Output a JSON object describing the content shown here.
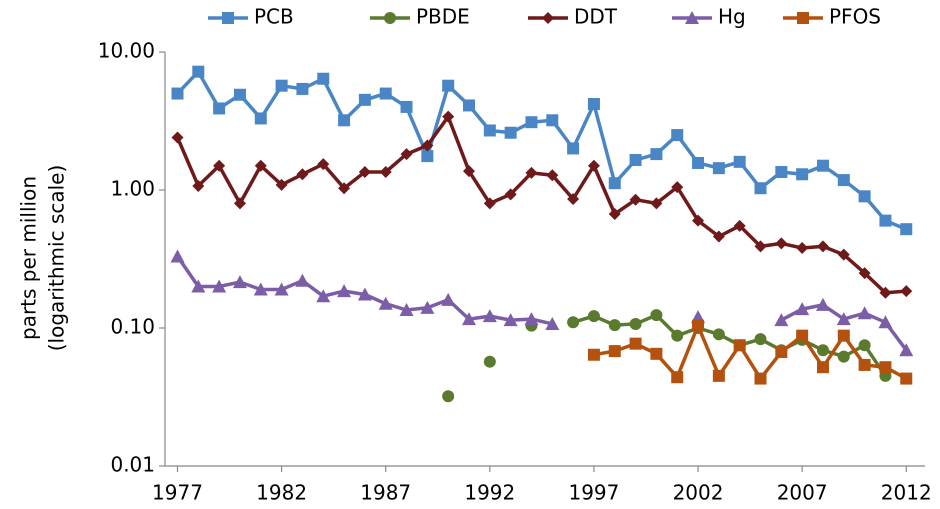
{
  "chart_data": {
    "type": "line",
    "ylabel": [
      "parts per million",
      "(logarithmic scale)"
    ],
    "log_y": true,
    "grid": false,
    "legend": "top",
    "x": [
      1977,
      1978,
      1979,
      1980,
      1981,
      1982,
      1983,
      1984,
      1985,
      1986,
      1987,
      1988,
      1989,
      1990,
      1991,
      1992,
      1993,
      1994,
      1995,
      1996,
      1997,
      1998,
      1999,
      2000,
      2001,
      2002,
      2003,
      2004,
      2005,
      2006,
      2007,
      2008,
      2009,
      2010,
      2011,
      2012
    ],
    "xlim": [
      1976.4,
      2012.9
    ],
    "xticks": [
      1977,
      1982,
      1987,
      1992,
      1997,
      2002,
      2007,
      2012
    ],
    "ylim": [
      0.01,
      10
    ],
    "yticks": [
      {
        "value": 0.01,
        "label": "0.01"
      },
      {
        "value": 0.1,
        "label": "0.10"
      },
      {
        "value": 1,
        "label": "1.00"
      },
      {
        "value": 10,
        "label": "10.00"
      }
    ],
    "series": [
      {
        "name": "PCB",
        "color": "#4a86c5",
        "marker": "square",
        "values": [
          5.0,
          7.2,
          3.9,
          4.9,
          3.3,
          5.7,
          5.4,
          6.4,
          3.2,
          4.5,
          5.0,
          4.0,
          1.76,
          5.7,
          4.1,
          2.7,
          2.6,
          3.1,
          3.2,
          2.0,
          4.2,
          1.12,
          1.65,
          1.82,
          2.5,
          1.57,
          1.44,
          1.6,
          1.03,
          1.35,
          1.3,
          1.5,
          1.18,
          0.9,
          0.6,
          0.52
        ]
      },
      {
        "name": "PBDE",
        "color": "#5a7a2e",
        "marker": "circle",
        "values": [
          null,
          null,
          null,
          null,
          null,
          null,
          null,
          null,
          null,
          null,
          null,
          null,
          null,
          0.032,
          null,
          0.057,
          null,
          0.104,
          null,
          0.11,
          0.122,
          0.105,
          0.107,
          0.124,
          0.088,
          0.1,
          0.09,
          0.075,
          0.083,
          0.069,
          0.082,
          0.069,
          0.062,
          0.075,
          0.045,
          null
        ]
      },
      {
        "name": "DDT",
        "color": "#6e1a1a",
        "marker": "diamond",
        "values": [
          2.4,
          1.07,
          1.5,
          0.8,
          1.5,
          1.09,
          1.3,
          1.54,
          1.03,
          1.35,
          1.35,
          1.82,
          2.1,
          3.4,
          1.37,
          0.8,
          0.93,
          1.33,
          1.28,
          0.86,
          1.5,
          0.67,
          0.85,
          0.8,
          1.05,
          0.6,
          0.46,
          0.55,
          0.39,
          0.41,
          0.38,
          0.39,
          0.34,
          0.25,
          0.18,
          0.185
        ]
      },
      {
        "name": "Hg",
        "color": "#7b5ea7",
        "marker": "triangle",
        "values": [
          0.33,
          0.2,
          0.2,
          0.215,
          0.19,
          0.19,
          0.22,
          0.17,
          0.185,
          0.175,
          0.15,
          0.135,
          0.14,
          0.16,
          0.116,
          0.122,
          0.114,
          0.116,
          0.107,
          null,
          null,
          null,
          null,
          null,
          null,
          0.12,
          null,
          null,
          null,
          0.114,
          0.137,
          0.147,
          0.116,
          0.128,
          0.11,
          0.069
        ]
      },
      {
        "name": "PFOS",
        "color": "#b3520f",
        "marker": "square",
        "values": [
          null,
          null,
          null,
          null,
          null,
          null,
          null,
          null,
          null,
          null,
          null,
          null,
          null,
          null,
          null,
          null,
          null,
          null,
          null,
          null,
          0.064,
          0.068,
          0.077,
          0.065,
          0.044,
          0.104,
          0.045,
          0.075,
          0.043,
          0.067,
          0.088,
          0.052,
          0.088,
          0.054,
          0.052,
          0.043
        ]
      }
    ]
  }
}
